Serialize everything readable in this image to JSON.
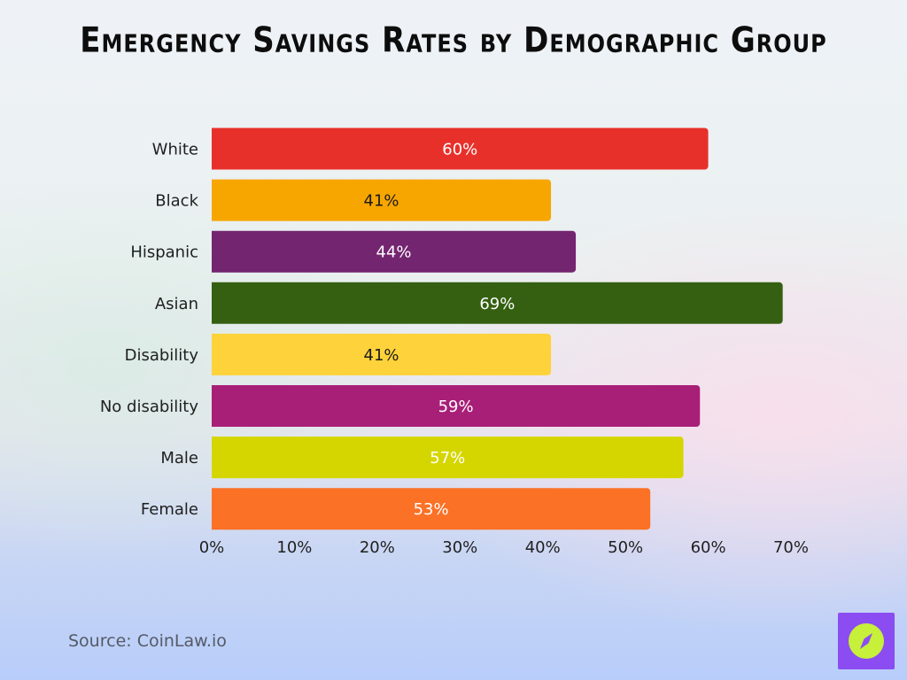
{
  "title": "Emergency Savings Rates by Demographic Group",
  "source": "Source: CoinLaw.io",
  "logo": {
    "icon": "compass-icon",
    "background": "#8b4cf2",
    "circle": "#c6f03a"
  },
  "chart_data": {
    "type": "bar",
    "orientation": "horizontal",
    "title": "Emergency Savings Rates by Demographic Group",
    "xlabel": "",
    "ylabel": "",
    "xlim": [
      0,
      70
    ],
    "ticks": [
      "0%",
      "10%",
      "20%",
      "30%",
      "40%",
      "50%",
      "60%",
      "70%"
    ],
    "tick_values": [
      0,
      10,
      20,
      30,
      40,
      50,
      60,
      70
    ],
    "grid": false,
    "categories": [
      "White",
      "Black",
      "Hispanic",
      "Asian",
      "Disability",
      "No disability",
      "Male",
      "Female"
    ],
    "values": [
      60,
      41,
      44,
      69,
      41,
      59,
      57,
      53
    ],
    "labels": [
      "60%",
      "41%",
      "44%",
      "69%",
      "41%",
      "59%",
      "57%",
      "53%"
    ],
    "colors": [
      "#e8302a",
      "#f7a600",
      "#742570",
      "#356011",
      "#fdd23a",
      "#a81f78",
      "#d5d600",
      "#fb7126"
    ],
    "label_colors": [
      "#ffffff",
      "#1a1a1a",
      "#ffffff",
      "#ffffff",
      "#1a1a1a",
      "#ffffff",
      "#ffffff",
      "#ffffff"
    ]
  }
}
